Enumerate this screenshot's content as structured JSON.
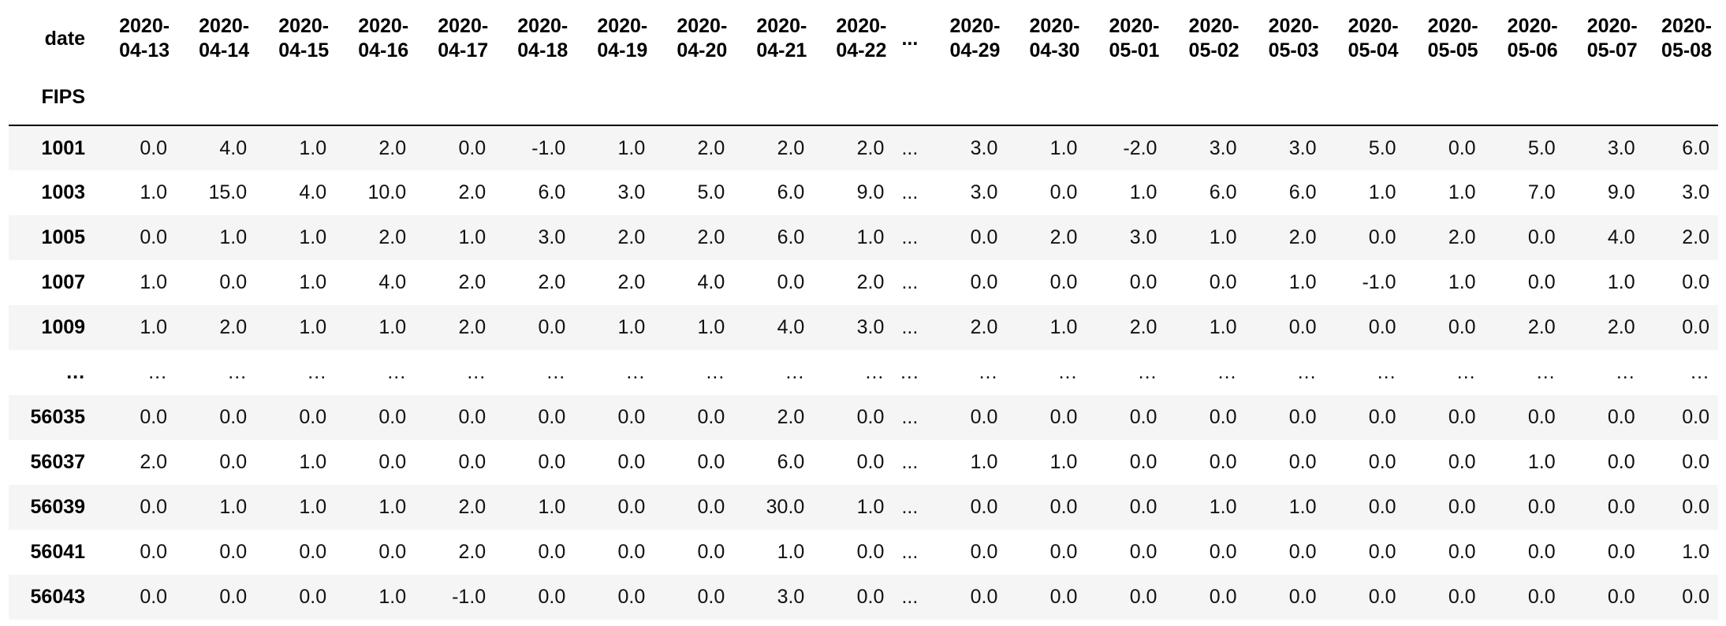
{
  "dataframe": {
    "column_axis_name": "date",
    "index_name": "FIPS",
    "columns": [
      "2020-\n04-13",
      "2020-\n04-14",
      "2020-\n04-15",
      "2020-\n04-16",
      "2020-\n04-17",
      "2020-\n04-18",
      "2020-\n04-19",
      "2020-\n04-20",
      "2020-\n04-21",
      "2020-\n04-22",
      "...",
      "2020-\n04-29",
      "2020-\n04-30",
      "2020-\n05-01",
      "2020-\n05-02",
      "2020-\n05-03",
      "2020-\n05-04",
      "2020-\n05-05",
      "2020-\n05-06",
      "2020-\n05-07",
      "2020-\n05-08"
    ],
    "rows": [
      {
        "index": "1001",
        "values": [
          "0.0",
          "4.0",
          "1.0",
          "2.0",
          "0.0",
          "-1.0",
          "1.0",
          "2.0",
          "2.0",
          "2.0",
          "...",
          "3.0",
          "1.0",
          "-2.0",
          "3.0",
          "3.0",
          "5.0",
          "0.0",
          "5.0",
          "3.0",
          "6.0"
        ]
      },
      {
        "index": "1003",
        "values": [
          "1.0",
          "15.0",
          "4.0",
          "10.0",
          "2.0",
          "6.0",
          "3.0",
          "5.0",
          "6.0",
          "9.0",
          "...",
          "3.0",
          "0.0",
          "1.0",
          "6.0",
          "6.0",
          "1.0",
          "1.0",
          "7.0",
          "9.0",
          "3.0"
        ]
      },
      {
        "index": "1005",
        "values": [
          "0.0",
          "1.0",
          "1.0",
          "2.0",
          "1.0",
          "3.0",
          "2.0",
          "2.0",
          "6.0",
          "1.0",
          "...",
          "0.0",
          "2.0",
          "3.0",
          "1.0",
          "2.0",
          "0.0",
          "2.0",
          "0.0",
          "4.0",
          "2.0"
        ]
      },
      {
        "index": "1007",
        "values": [
          "1.0",
          "0.0",
          "1.0",
          "4.0",
          "2.0",
          "2.0",
          "2.0",
          "4.0",
          "0.0",
          "2.0",
          "...",
          "0.0",
          "0.0",
          "0.0",
          "0.0",
          "1.0",
          "-1.0",
          "1.0",
          "0.0",
          "1.0",
          "0.0"
        ]
      },
      {
        "index": "1009",
        "values": [
          "1.0",
          "2.0",
          "1.0",
          "1.0",
          "2.0",
          "0.0",
          "1.0",
          "1.0",
          "4.0",
          "3.0",
          "...",
          "2.0",
          "1.0",
          "2.0",
          "1.0",
          "0.0",
          "0.0",
          "0.0",
          "2.0",
          "2.0",
          "0.0"
        ]
      },
      {
        "index": "...",
        "values": [
          "...",
          "...",
          "...",
          "...",
          "...",
          "...",
          "...",
          "...",
          "...",
          "...",
          "...",
          "...",
          "...",
          "...",
          "...",
          "...",
          "...",
          "...",
          "...",
          "...",
          "..."
        ]
      },
      {
        "index": "56035",
        "values": [
          "0.0",
          "0.0",
          "0.0",
          "0.0",
          "0.0",
          "0.0",
          "0.0",
          "0.0",
          "2.0",
          "0.0",
          "...",
          "0.0",
          "0.0",
          "0.0",
          "0.0",
          "0.0",
          "0.0",
          "0.0",
          "0.0",
          "0.0",
          "0.0"
        ]
      },
      {
        "index": "56037",
        "values": [
          "2.0",
          "0.0",
          "1.0",
          "0.0",
          "0.0",
          "0.0",
          "0.0",
          "0.0",
          "6.0",
          "0.0",
          "...",
          "1.0",
          "1.0",
          "0.0",
          "0.0",
          "0.0",
          "0.0",
          "0.0",
          "1.0",
          "0.0",
          "0.0"
        ]
      },
      {
        "index": "56039",
        "values": [
          "0.0",
          "1.0",
          "1.0",
          "1.0",
          "2.0",
          "1.0",
          "0.0",
          "0.0",
          "30.0",
          "1.0",
          "...",
          "0.0",
          "0.0",
          "0.0",
          "1.0",
          "1.0",
          "0.0",
          "0.0",
          "0.0",
          "0.0",
          "0.0"
        ]
      },
      {
        "index": "56041",
        "values": [
          "0.0",
          "0.0",
          "0.0",
          "0.0",
          "2.0",
          "0.0",
          "0.0",
          "0.0",
          "1.0",
          "0.0",
          "...",
          "0.0",
          "0.0",
          "0.0",
          "0.0",
          "0.0",
          "0.0",
          "0.0",
          "0.0",
          "0.0",
          "1.0"
        ]
      },
      {
        "index": "56043",
        "values": [
          "0.0",
          "0.0",
          "0.0",
          "1.0",
          "-1.0",
          "0.0",
          "0.0",
          "0.0",
          "3.0",
          "0.0",
          "...",
          "0.0",
          "0.0",
          "0.0",
          "0.0",
          "0.0",
          "0.0",
          "0.0",
          "0.0",
          "0.0",
          "0.0"
        ]
      }
    ]
  },
  "colors": {
    "row_shade": "#f5f5f5",
    "header_rule": "#000000"
  }
}
